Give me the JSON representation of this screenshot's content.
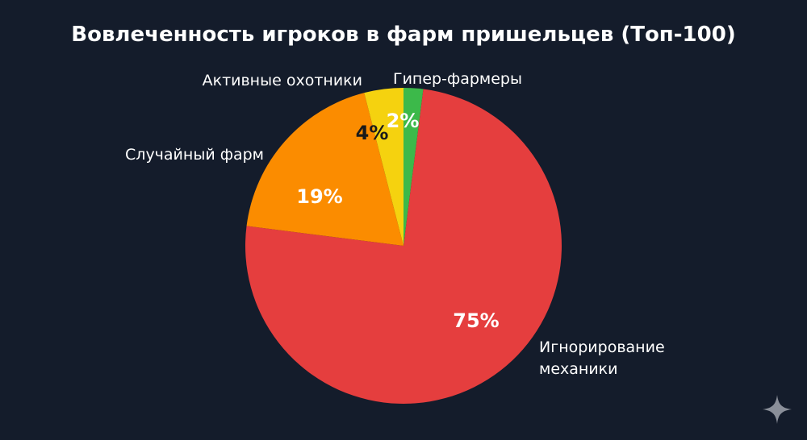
{
  "chart_data": {
    "type": "pie",
    "title": "Вовлеченность игроков в фарм пришельцев (Топ-100)",
    "slices": [
      {
        "label": "Гипер-фармеры",
        "value": 2,
        "value_label": "2%",
        "color": "#3cb94a",
        "pct_color": "#ffffff"
      },
      {
        "label": "Игнорирование механики",
        "label_lines": [
          "Игнорирование",
          "механики"
        ],
        "value": 75,
        "value_label": "75%",
        "color": "#e53e3e",
        "pct_color": "#ffffff"
      },
      {
        "label": "Случайный фарм",
        "value": 19,
        "value_label": "19%",
        "color": "#fb8c00",
        "pct_color": "#ffffff"
      },
      {
        "label": "Активные охотники",
        "value": 4,
        "value_label": "4%",
        "color": "#f5d20f",
        "pct_color": "#1a1a1a"
      }
    ]
  },
  "icons": {
    "sparkle": "sparkle-icon"
  }
}
